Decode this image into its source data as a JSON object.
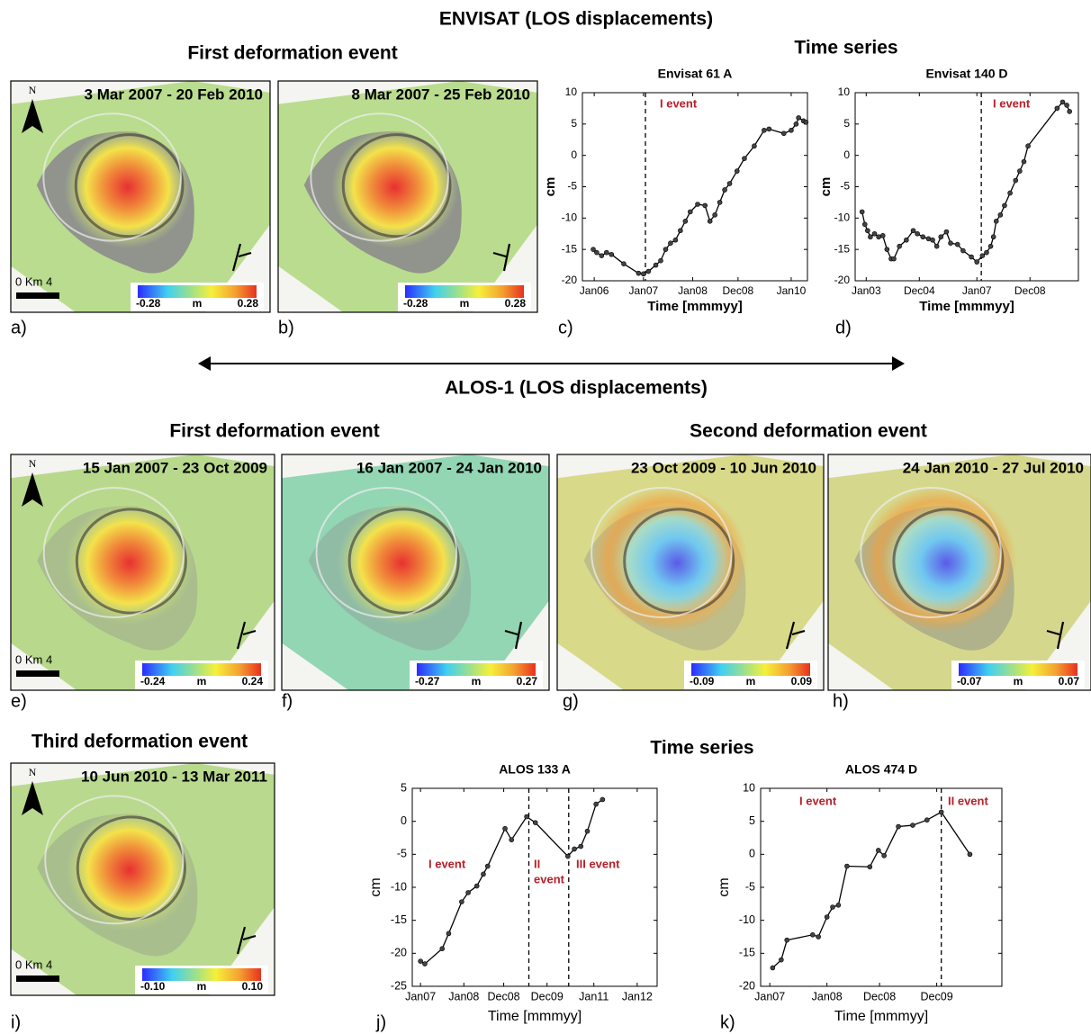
{
  "headings": {
    "envisat": "ENVISAT (LOS displacements)",
    "env_first": "First deformation event",
    "env_ts": "Time series",
    "alos": "ALOS-1 (LOS displacements)",
    "alos_first": "First deformation event",
    "alos_second": "Second deformation event",
    "alos_third": "Third deformation event",
    "alos_ts": "Time series"
  },
  "maps": [
    {
      "panel": "a)",
      "date": "3 Mar 2007 - 20 Feb 2010",
      "north": "N",
      "scale": "0 Km 4",
      "colorbar": {
        "min": "-0.28",
        "unit": "m",
        "max": "0.28"
      }
    },
    {
      "panel": "b)",
      "date": "8 Mar 2007 - 25 Feb 2010",
      "colorbar": {
        "min": "-0.28",
        "unit": "m",
        "max": "0.28"
      }
    },
    {
      "panel": "e)",
      "date": "15 Jan 2007 - 23 Oct 2009",
      "north": "N",
      "scale": "0 Km 4",
      "colorbar": {
        "min": "-0.24",
        "unit": "m",
        "max": "0.24"
      }
    },
    {
      "panel": "f)",
      "date": "16 Jan 2007 - 24 Jan 2010",
      "colorbar": {
        "min": "-0.27",
        "unit": "m",
        "max": "0.27"
      }
    },
    {
      "panel": "g)",
      "date": "23 Oct 2009 - 10 Jun 2010",
      "colorbar": {
        "min": "-0.09",
        "unit": "m",
        "max": "0.09"
      }
    },
    {
      "panel": "h)",
      "date": "24 Jan 2010 - 27 Jul 2010",
      "colorbar": {
        "min": "-0.07",
        "unit": "m",
        "max": "0.07"
      }
    },
    {
      "panel": "i)",
      "date": "10 Jun 2010 - 13 Mar 2011",
      "north": "N",
      "scale": "0 Km 4",
      "colorbar": {
        "min": "-0.10",
        "unit": "m",
        "max": "0.10"
      }
    }
  ],
  "chart_data": [
    {
      "type": "line",
      "panel": "c)",
      "title": "Envisat 61 A",
      "xlabel": "Time [mmmyy]",
      "ylabel": "cm",
      "color": "#000000",
      "x": [
        2005.98,
        2006.05,
        2006.15,
        2006.25,
        2006.35,
        2006.6,
        2006.9,
        2007.0,
        2007.1,
        2007.25,
        2007.35,
        2007.45,
        2007.55,
        2007.65,
        2007.75,
        2007.85,
        2007.95,
        2008.1,
        2008.25,
        2008.35,
        2008.45,
        2008.55,
        2008.65,
        2008.75,
        2008.9,
        2009.05,
        2009.25,
        2009.45,
        2009.55,
        2009.85,
        2010.0,
        2010.1,
        2010.15,
        2010.25,
        2010.3
      ],
      "values": [
        -15,
        -15.5,
        -16,
        -15.5,
        -15.8,
        -17.3,
        -18.8,
        -18.9,
        -18.5,
        -17.5,
        -16.8,
        -15,
        -14,
        -13.5,
        -12,
        -10.5,
        -9,
        -7.8,
        -8,
        -10.5,
        -9.5,
        -7.5,
        -5.5,
        -4.5,
        -2.5,
        -0.5,
        1.5,
        4,
        4.2,
        3.5,
        4,
        5,
        6,
        5.5,
        5.3
      ],
      "xlim": [
        2005.76,
        2010.33
      ],
      "xticks": [
        {
          "value": 2006,
          "label": "Jan06"
        },
        {
          "value": 2007,
          "label": "Jan07"
        },
        {
          "value": 2008,
          "label": "Jan08"
        },
        {
          "value": 2008.92,
          "label": "Dec08"
        },
        {
          "value": 2010,
          "label": "Jan10"
        }
      ],
      "ylim": [
        -20,
        10
      ],
      "yticks": [
        -20,
        -15,
        -10,
        -5,
        0,
        5,
        10
      ],
      "event_lines": [
        2007.04
      ],
      "annotations": [
        "I event"
      ]
    },
    {
      "type": "line",
      "panel": "d)",
      "title": "Envisat 140 D",
      "xlabel": "Time [mmmyy]",
      "ylabel": "cm",
      "color": "#000000",
      "x": [
        2002.85,
        2002.95,
        2003.05,
        2003.15,
        2003.3,
        2003.45,
        2003.6,
        2003.75,
        2003.9,
        2004.0,
        2004.2,
        2004.45,
        2004.7,
        2004.85,
        2005.05,
        2005.25,
        2005.4,
        2005.55,
        2005.7,
        2005.9,
        2006.05,
        2006.3,
        2006.5,
        2006.8,
        2007.0,
        2007.2,
        2007.35,
        2007.5,
        2007.6,
        2007.7,
        2007.85,
        2008.0,
        2008.2,
        2008.4,
        2008.55,
        2008.7,
        2008.85,
        2009.9,
        2010.1,
        2010.25,
        2010.35
      ],
      "values": [
        -9,
        -11,
        -12,
        -13,
        -12.5,
        -13,
        -12.8,
        -15,
        -16.5,
        -16.5,
        -14.5,
        -13.5,
        -12,
        -12.5,
        -13,
        -13.3,
        -13.5,
        -14.5,
        -13,
        -12.2,
        -14,
        -14.2,
        -15.2,
        -16.2,
        -17,
        -16,
        -15.5,
        -14.5,
        -13,
        -10.5,
        -9.5,
        -8,
        -6,
        -4,
        -2.5,
        -1,
        1.5,
        7.5,
        8.5,
        8,
        7
      ],
      "xlim": [
        2002.6,
        2010.67
      ],
      "xticks": [
        {
          "value": 2003,
          "label": "Jan03"
        },
        {
          "value": 2004.92,
          "label": "Dec04"
        },
        {
          "value": 2007,
          "label": "Jan07"
        },
        {
          "value": 2008.92,
          "label": "Dec08"
        }
      ],
      "ylim": [
        -20,
        10
      ],
      "yticks": [
        -20,
        -15,
        -10,
        -5,
        0,
        5,
        10
      ],
      "event_lines": [
        2007.16
      ],
      "annotations": [
        "I event"
      ]
    },
    {
      "type": "line",
      "panel": "j)",
      "title": "ALOS 133 A",
      "xlabel": "Time [mmmyy]",
      "ylabel": "cm",
      "color": "#000000",
      "x": [
        2007.0,
        2007.1,
        2007.5,
        2007.65,
        2007.95,
        2008.1,
        2008.3,
        2008.45,
        2008.55,
        2008.95,
        2009.1,
        2009.45,
        2009.65,
        2010.4,
        2010.55,
        2010.7,
        2010.85,
        2011.05,
        2011.2
      ],
      "values": [
        -21.2,
        -21.6,
        -19.3,
        -17,
        -12.2,
        -10.8,
        -9.8,
        -8,
        -6.8,
        -1.1,
        -2.8,
        0.7,
        -0.2,
        -5.3,
        -4.2,
        -3.8,
        -1.5,
        2.6,
        3.3
      ],
      "xlim": [
        2006.81,
        2012.46
      ],
      "xticks": [
        {
          "value": 2007,
          "label": "Jan07"
        },
        {
          "value": 2008,
          "label": "Jan08"
        },
        {
          "value": 2008.92,
          "label": "Dec08"
        },
        {
          "value": 2009.92,
          "label": "Dec09"
        },
        {
          "value": 2011,
          "label": "Jan11"
        },
        {
          "value": 2012,
          "label": "Jan12"
        }
      ],
      "ylim": [
        -25,
        5
      ],
      "yticks": [
        -25,
        -20,
        -15,
        -10,
        -5,
        0,
        5
      ],
      "event_lines": [
        2009.5,
        2010.42
      ],
      "annotations": [
        "I event",
        "II",
        "event",
        "III event"
      ]
    },
    {
      "type": "line",
      "panel": "k)",
      "title": "ALOS 474 D",
      "xlabel": "Time [mmmyy]",
      "ylabel": "cm",
      "color": "#000000",
      "x": [
        2007.05,
        2007.2,
        2007.3,
        2007.75,
        2007.85,
        2008.0,
        2008.1,
        2008.2,
        2008.35,
        2008.75,
        2008.9,
        2009.0,
        2009.25,
        2009.5,
        2009.75,
        2010.0,
        2010.5
      ],
      "values": [
        -17.2,
        -16,
        -13,
        -12.2,
        -12.5,
        -9.5,
        -8,
        -7.7,
        -1.8,
        -1.9,
        0.6,
        -0.2,
        4.2,
        4.4,
        5.2,
        6.4,
        0
      ],
      "xlim": [
        2006.84,
        2011.06
      ],
      "xticks": [
        {
          "value": 2007,
          "label": "Jan07"
        },
        {
          "value": 2008,
          "label": "Jan08"
        },
        {
          "value": 2008.92,
          "label": "Dec08"
        },
        {
          "value": 2009.92,
          "label": "Dec09"
        }
      ],
      "ylim": [
        -20,
        10
      ],
      "yticks": [
        -20,
        -15,
        -10,
        -5,
        0,
        5,
        10
      ],
      "event_lines": [
        2010.0
      ],
      "annotations": [
        "I event",
        "II event"
      ]
    }
  ]
}
